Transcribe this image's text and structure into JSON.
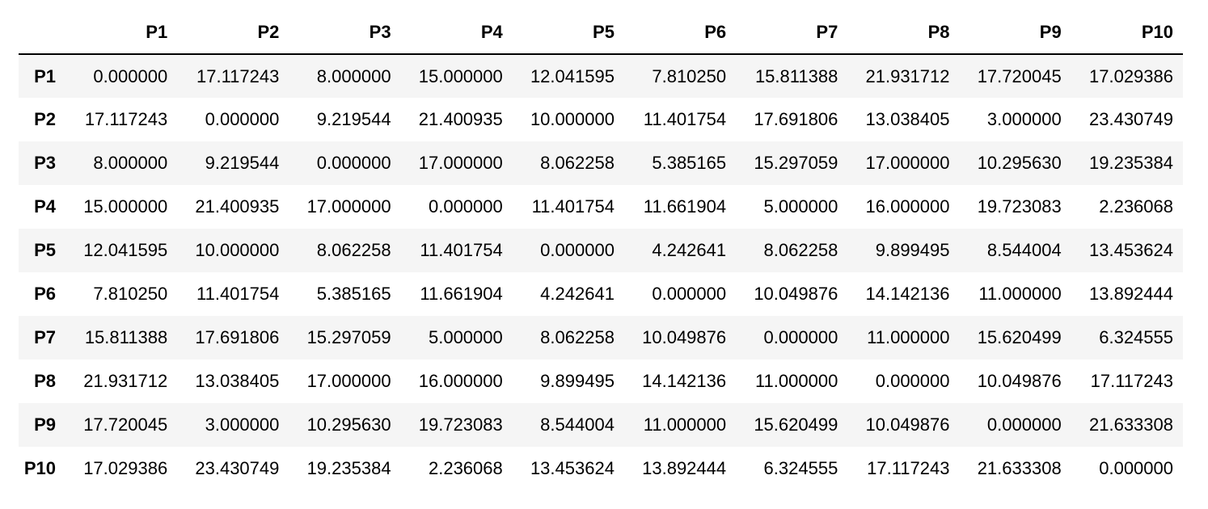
{
  "table": {
    "corner": "",
    "columns": [
      "P1",
      "P2",
      "P3",
      "P4",
      "P5",
      "P6",
      "P7",
      "P8",
      "P9",
      "P10"
    ],
    "rows": [
      {
        "label": "P1",
        "cells": [
          "0.000000",
          "17.117243",
          "8.000000",
          "15.000000",
          "12.041595",
          "7.810250",
          "15.811388",
          "21.931712",
          "17.720045",
          "17.029386"
        ]
      },
      {
        "label": "P2",
        "cells": [
          "17.117243",
          "0.000000",
          "9.219544",
          "21.400935",
          "10.000000",
          "11.401754",
          "17.691806",
          "13.038405",
          "3.000000",
          "23.430749"
        ]
      },
      {
        "label": "P3",
        "cells": [
          "8.000000",
          "9.219544",
          "0.000000",
          "17.000000",
          "8.062258",
          "5.385165",
          "15.297059",
          "17.000000",
          "10.295630",
          "19.235384"
        ]
      },
      {
        "label": "P4",
        "cells": [
          "15.000000",
          "21.400935",
          "17.000000",
          "0.000000",
          "11.401754",
          "11.661904",
          "5.000000",
          "16.000000",
          "19.723083",
          "2.236068"
        ]
      },
      {
        "label": "P5",
        "cells": [
          "12.041595",
          "10.000000",
          "8.062258",
          "11.401754",
          "0.000000",
          "4.242641",
          "8.062258",
          "9.899495",
          "8.544004",
          "13.453624"
        ]
      },
      {
        "label": "P6",
        "cells": [
          "7.810250",
          "11.401754",
          "5.385165",
          "11.661904",
          "4.242641",
          "0.000000",
          "10.049876",
          "14.142136",
          "11.000000",
          "13.892444"
        ]
      },
      {
        "label": "P7",
        "cells": [
          "15.811388",
          "17.691806",
          "15.297059",
          "5.000000",
          "8.062258",
          "10.049876",
          "0.000000",
          "11.000000",
          "15.620499",
          "6.324555"
        ]
      },
      {
        "label": "P8",
        "cells": [
          "21.931712",
          "13.038405",
          "17.000000",
          "16.000000",
          "9.899495",
          "14.142136",
          "11.000000",
          "0.000000",
          "10.049876",
          "17.117243"
        ]
      },
      {
        "label": "P9",
        "cells": [
          "17.720045",
          "3.000000",
          "10.295630",
          "19.723083",
          "8.544004",
          "11.000000",
          "15.620499",
          "10.049876",
          "0.000000",
          "21.633308"
        ]
      },
      {
        "label": "P10",
        "cells": [
          "17.029386",
          "23.430749",
          "19.235384",
          "2.236068",
          "13.453624",
          "13.892444",
          "6.324555",
          "17.117243",
          "21.633308",
          "0.000000"
        ]
      }
    ]
  },
  "colors": {
    "stripe": "#f5f5f5",
    "background": "#ffffff",
    "text": "#000000",
    "header_rule": "#000000"
  }
}
